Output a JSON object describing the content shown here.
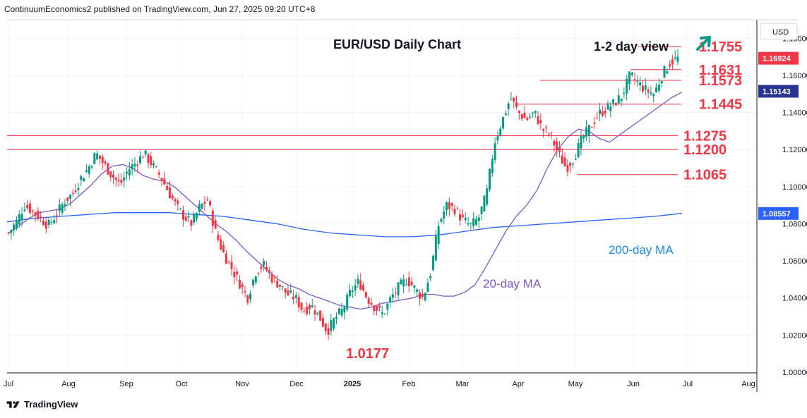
{
  "header": {
    "publisher": "ContinuumEconomics2 published on TradingView.com, Jun 27, 2025 09:20 UTC+8"
  },
  "footer": {
    "brand": "TradingView"
  },
  "colors": {
    "up": "#089981",
    "down": "#f23645",
    "ma20": "#7e57c2",
    "ma200": "#2962ff",
    "level": "#f23645",
    "arrow": "#089981"
  },
  "chart_data": {
    "type": "candlestick",
    "title": "EUR/USD Daily Chart",
    "view_label": "1-2 day view",
    "view_icon": "up-right-arrow-icon",
    "currency": "USD",
    "ylim": [
      1.0,
      1.19
    ],
    "y_ticks": [
      "1.18000",
      "1.16000",
      "1.14000",
      "1.12000",
      "1.10000",
      "1.08000",
      "1.06000",
      "1.04000",
      "1.02000",
      "1.00000"
    ],
    "x_ticks": [
      "Jul",
      "Aug",
      "Sep",
      "Oct",
      "Nov",
      "Dec",
      "2025",
      "Feb",
      "Mar",
      "Apr",
      "May",
      "Jun",
      "Jul",
      "Aug"
    ],
    "last_price": "1.16924",
    "ma20_value": "1.15143",
    "ma200_value": "1.08557",
    "levels": [
      {
        "label": "1.1755",
        "value": 1.1755
      },
      {
        "label": "1.1631",
        "value": 1.1631
      },
      {
        "label": "1.1573",
        "value": 1.1573
      },
      {
        "label": "1.1445",
        "value": 1.1445
      },
      {
        "label": "1.1275",
        "value": 1.1275
      },
      {
        "label": "1.1200",
        "value": 1.12
      },
      {
        "label": "1.1065",
        "value": 1.1065
      }
    ],
    "low_label": "1.0177",
    "ma20_label": "20-day MA",
    "ma200_label": "200-day MA",
    "price_path": [
      1.075,
      1.081,
      1.09,
      1.087,
      1.083,
      1.079,
      1.085,
      1.092,
      1.096,
      1.104,
      1.11,
      1.118,
      1.112,
      1.106,
      1.101,
      1.109,
      1.113,
      1.118,
      1.112,
      1.106,
      1.098,
      1.09,
      1.084,
      1.08,
      1.089,
      1.093,
      1.075,
      1.064,
      1.056,
      1.048,
      1.04,
      1.054,
      1.058,
      1.051,
      1.047,
      1.042,
      1.04,
      1.033,
      1.036,
      1.03,
      1.022,
      1.029,
      1.034,
      1.044,
      1.049,
      1.04,
      1.035,
      1.031,
      1.04,
      1.046,
      1.05,
      1.045,
      1.04,
      1.054,
      1.08,
      1.09,
      1.088,
      1.082,
      1.079,
      1.083,
      1.096,
      1.124,
      1.136,
      1.148,
      1.14,
      1.136,
      1.14,
      1.131,
      1.128,
      1.118,
      1.11,
      1.116,
      1.126,
      1.132,
      1.139,
      1.142,
      1.145,
      1.149,
      1.16,
      1.156,
      1.152,
      1.15,
      1.16,
      1.167,
      1.1692
    ],
    "ma20_path": [
      1.075,
      1.079,
      1.083,
      1.086,
      1.087,
      1.088,
      1.091,
      1.096,
      1.101,
      1.107,
      1.111,
      1.112,
      1.11,
      1.106,
      1.104,
      1.103,
      1.1,
      1.095,
      1.09,
      1.085,
      1.08,
      1.076,
      1.071,
      1.065,
      1.06,
      1.055,
      1.05,
      1.047,
      1.045,
      1.042,
      1.04,
      1.038,
      1.036,
      1.035,
      1.034,
      1.035,
      1.037,
      1.038,
      1.039,
      1.04,
      1.042,
      1.042,
      1.041,
      1.041,
      1.043,
      1.047,
      1.056,
      1.066,
      1.076,
      1.084,
      1.09,
      1.098,
      1.11,
      1.12,
      1.127,
      1.131,
      1.13,
      1.126,
      1.124,
      1.128,
      1.132,
      1.136,
      1.14,
      1.144,
      1.148,
      1.151
    ],
    "ma200_path": [
      1.081,
      1.083,
      1.084,
      1.085,
      1.086,
      1.086,
      1.086,
      1.085,
      1.084,
      1.082,
      1.08,
      1.077,
      1.075,
      1.074,
      1.073,
      1.073,
      1.074,
      1.076,
      1.078,
      1.079,
      1.08,
      1.081,
      1.082,
      1.083,
      1.084,
      1.0856
    ]
  }
}
